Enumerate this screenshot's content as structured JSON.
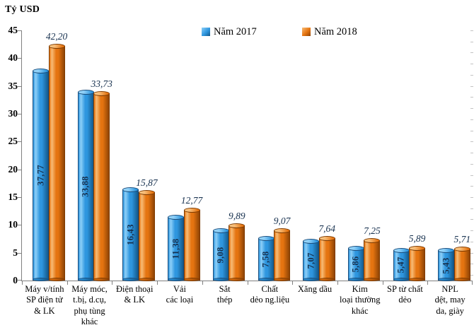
{
  "chart_data": {
    "type": "bar",
    "title": "Tỷ USD",
    "xlabel": "",
    "ylabel": "Tỷ USD",
    "ylim": [
      0,
      45
    ],
    "ytick_step": 5,
    "yticks": [
      0,
      5,
      10,
      15,
      20,
      25,
      30,
      35,
      40,
      45
    ],
    "grid": false,
    "legend_position": "top-center",
    "decimal_separator": ",",
    "axis_color": "#808080",
    "value_label_color": "#16304e",
    "text_color": "#000000",
    "categories": [
      {
        "label": "Máy v/tính SP điện tử & LK",
        "lines": [
          "Máy v/tính",
          "SP điện tử",
          "& LK"
        ]
      },
      {
        "label": "Máy móc, t.bị, d.cụ, phụ tùng khác",
        "lines": [
          "Máy móc,",
          "t.bị, d.cụ,",
          "phụ tùng",
          "khác"
        ]
      },
      {
        "label": "Điện thoại & LK",
        "lines": [
          "Điện thoại",
          "& LK"
        ]
      },
      {
        "label": "Vải các loại",
        "lines": [
          "Vải",
          "các loại"
        ]
      },
      {
        "label": "Sắt thép",
        "lines": [
          "Sắt",
          "thép"
        ]
      },
      {
        "label": "Chất dẻo ng.liệu",
        "lines": [
          "Chất",
          "dẻo ng.liệu"
        ]
      },
      {
        "label": "Xăng dầu",
        "lines": [
          "Xăng dầu"
        ]
      },
      {
        "label": "Kim loại thường khác",
        "lines": [
          "Kim",
          "loại thường",
          "khác"
        ]
      },
      {
        "label": "SP từ chất dẻo",
        "lines": [
          "SP từ chất",
          "dẻo"
        ]
      },
      {
        "label": "NPL dệt, may da, giày",
        "lines": [
          "NPL",
          "dệt, may",
          "da, giày"
        ]
      }
    ],
    "series": [
      {
        "name": "Năm 2017",
        "values": [
          37.77,
          33.88,
          16.43,
          11.38,
          9.08,
          7.58,
          7.07,
          5.86,
          5.47,
          5.43
        ],
        "labels": [
          "37,77",
          "33,88",
          "16,43",
          "11,38",
          "9,08",
          "7,58",
          "7,07",
          "5,86",
          "5,47",
          "5,43"
        ],
        "label_style": "rotated-inside-bar",
        "colors": {
          "main": "#2e96df",
          "light": "#8ed0f8",
          "dark": "#14598a",
          "outline": "#1a4e7e",
          "cap_light": "#9ad6f9"
        }
      },
      {
        "name": "Năm 2018",
        "values": [
          42.2,
          33.73,
          15.87,
          12.77,
          9.89,
          9.07,
          7.64,
          7.25,
          5.89,
          5.71
        ],
        "labels": [
          "42,20",
          "33,73",
          "15,87",
          "12,77",
          "9,89",
          "9,07",
          "7,64",
          "7,25",
          "5,89",
          "5,71"
        ],
        "label_style": "italic-above-bar",
        "colors": {
          "main": "#e57410",
          "light": "#f8bc76",
          "dark": "#8f4405",
          "outline": "#7f3b00",
          "cap_light": "#f9c886"
        }
      }
    ]
  }
}
